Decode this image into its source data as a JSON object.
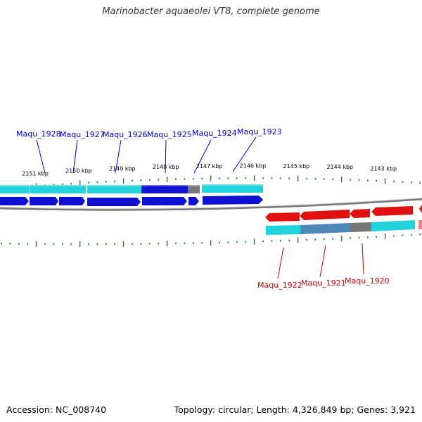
{
  "title": "Marinobacter aquaeolei VT8, complete genome",
  "footer": {
    "accession": "Accession: NC_008740",
    "stats": "Topology: circular; Length: 4,326,849 bp; Genes: 3,921"
  },
  "scale_labels": [
    "2151 kbp",
    "2150 kbp",
    "2149 kbp",
    "2148 kbp",
    "2147 kbp",
    "2146 kbp",
    "2145 kbp",
    "2144 kbp",
    "2143 kbp"
  ],
  "colors": {
    "forward_label": "#0000cc",
    "reverse_label": "#cc0000",
    "tick": "#2e8b2e",
    "backbone": "#808080",
    "cyan": "#22d3dd",
    "blue": "#1010d0",
    "red": "#e01010",
    "steel": "#4f86b8",
    "gray": "#777777"
  },
  "gene_labels": {
    "forward": [
      "Maqu_1928",
      "Maqu_1927",
      "Maqu_1926",
      "Maqu_1925",
      "Maqu_1924",
      "Maqu_1923"
    ],
    "reverse": [
      "Maqu_1922",
      "Maqu_1921",
      "Maqu_1920"
    ]
  }
}
